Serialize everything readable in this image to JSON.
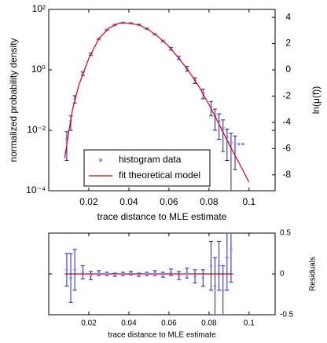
{
  "chart_data": [
    {
      "type": "line",
      "ylabel": "normalized probability density",
      "xlabel": "trace distance to MLE estimate",
      "y2label": "ln(μ(f))",
      "xlim": [
        0,
        0.113
      ],
      "xticks": [
        0.02,
        0.04,
        0.06,
        0.08,
        0.1
      ],
      "yscale": "log",
      "ylim": [
        0.0001,
        100
      ],
      "yticks": [
        {
          "value": 0.0001,
          "label": "10⁻⁴"
        },
        {
          "value": 0.01,
          "label": "10⁻²"
        },
        {
          "value": 1,
          "label": "10⁰"
        },
        {
          "value": 100,
          "label": "10²"
        }
      ],
      "y2lim": [
        -9.21,
        4.605
      ],
      "y2ticks": [
        -8,
        -6,
        -4,
        -2,
        0,
        2,
        4
      ],
      "legend": "lower center",
      "series": [
        {
          "name": "histogram data",
          "type": "scatter",
          "color": "#8c8cff",
          "error_color": "#2020a0",
          "x": [
            0.009,
            0.011,
            0.013,
            0.017,
            0.021,
            0.025,
            0.029,
            0.033,
            0.037,
            0.041,
            0.045,
            0.049,
            0.053,
            0.057,
            0.061,
            0.065,
            0.069,
            0.073,
            0.077,
            0.081,
            0.083,
            0.085,
            0.087,
            0.089,
            0.091,
            0.093,
            0.095,
            0.097
          ],
          "values": [
            0.005,
            0.02,
            0.11,
            0.75,
            3.3,
            10.5,
            21,
            31,
            36,
            35,
            31,
            23,
            15,
            9,
            5,
            2.5,
            1.1,
            0.45,
            0.17,
            0.06,
            0.03,
            0.02,
            0.012,
            0.006,
            0.004,
            0.0035,
            0.0035,
            0.0035
          ],
          "errors": [
            0.004,
            0.01,
            0.03,
            0.1,
            0.3,
            0.6,
            1,
            1,
            1,
            1,
            1,
            1,
            0.8,
            0.6,
            0.5,
            0.3,
            0.2,
            0.1,
            0.06,
            0.03,
            0.02,
            0.015,
            0.01,
            0.005,
            0.004,
            0.003,
            null,
            null
          ]
        },
        {
          "name": "fit theoretical model",
          "type": "line",
          "color": "#e00000",
          "x": [
            0.008,
            0.01,
            0.012,
            0.015,
            0.02,
            0.025,
            0.03,
            0.035,
            0.038,
            0.045,
            0.05,
            0.055,
            0.06,
            0.065,
            0.07,
            0.075,
            0.08,
            0.085,
            0.09,
            0.095,
            0.1
          ],
          "values": [
            0.0012,
            0.009,
            0.052,
            0.31,
            2.4,
            10.7,
            24,
            35,
            36,
            31,
            21,
            12,
            5.9,
            2.4,
            0.89,
            0.28,
            0.071,
            0.016,
            0.0035,
            0.00083,
            0.00019
          ]
        }
      ]
    },
    {
      "type": "line",
      "xlabel": "trace distance to MLE estimate",
      "ylabel": "Residuals",
      "xlim": [
        0,
        0.113
      ],
      "xticks": [
        0.02,
        0.04,
        0.06,
        0.08,
        0.1
      ],
      "ylim": [
        -0.5,
        0.5
      ],
      "yticks": [
        -0.5,
        0,
        0.5
      ],
      "ytick_side": "right",
      "series": [
        {
          "type": "line",
          "color": "#e00000",
          "x": [
            0.008,
            0.092
          ],
          "values": [
            0,
            0
          ]
        },
        {
          "type": "scatter",
          "color": "#8c8cff",
          "error_color": "#2020c0",
          "x": [
            0.009,
            0.011,
            0.013,
            0.017,
            0.021,
            0.025,
            0.029,
            0.033,
            0.037,
            0.041,
            0.045,
            0.049,
            0.053,
            0.057,
            0.061,
            0.065,
            0.069,
            0.073,
            0.077,
            0.081,
            0.083,
            0.085,
            0.087,
            0.089,
            0.091
          ],
          "values": [
            0.05,
            -0.05,
            0.05,
            0.02,
            -0.02,
            0.01,
            0,
            -0.01,
            0,
            0.01,
            -0.01,
            0,
            0.01,
            -0.01,
            0.02,
            -0.02,
            0.01,
            -0.03,
            -0.05,
            0.1,
            -0.15,
            0.1,
            -0.2,
            0.2,
            0.3
          ],
          "errors": [
            0.2,
            0.3,
            0.25,
            0.08,
            0.05,
            0.03,
            0.02,
            0.02,
            0.02,
            0.02,
            0.02,
            0.02,
            0.03,
            0.03,
            0.04,
            0.05,
            0.06,
            0.08,
            0.1,
            0.3,
            0.35,
            0.3,
            0.3,
            0.4,
            0.4
          ]
        }
      ]
    }
  ]
}
